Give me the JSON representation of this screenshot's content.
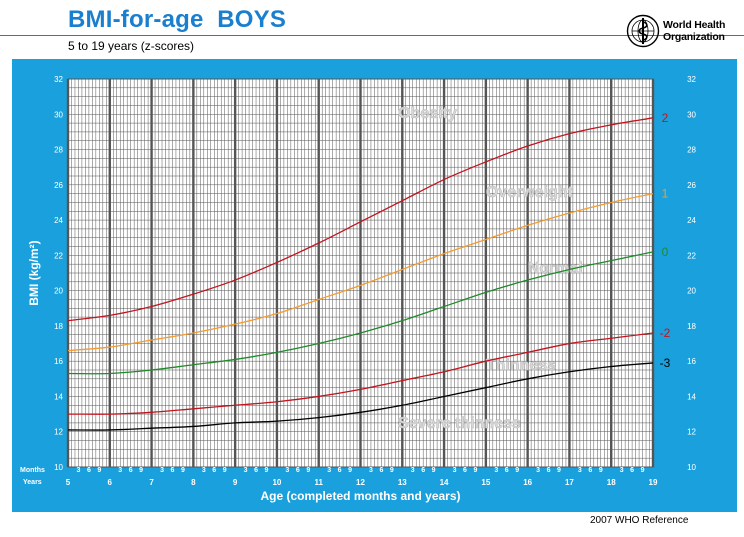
{
  "header": {
    "title": "BMI-for-age  BOYS",
    "subtitle": "5 to 19 years (z-scores)",
    "org_line1": "World Health",
    "org_line2": "Organization",
    "org_emblem": "who-emblem-icon"
  },
  "footer": {
    "reference": "2007  WHO Reference"
  },
  "colors": {
    "title": "#1a7fcf",
    "panel": "#1aa1dd",
    "grid": "#555555",
    "z2": "#c0151f",
    "z1": "#f39b30",
    "z0": "#1f8a2a",
    "zm2": "#c0151f",
    "zm3": "#000000",
    "zone_text": "#d8d8d8"
  },
  "chart_data": {
    "type": "line",
    "xlabel": "Age (completed months and years)",
    "ylabel": "BMI (kg/m²)",
    "xlim": [
      5,
      19
    ],
    "ylim": [
      10,
      32
    ],
    "x_ticks": [
      5,
      6,
      7,
      8,
      9,
      10,
      11,
      12,
      13,
      14,
      15,
      16,
      17,
      18,
      19
    ],
    "y_ticks": [
      10,
      12,
      14,
      16,
      18,
      20,
      22,
      24,
      26,
      28,
      30,
      32
    ],
    "months_label": "Months",
    "years_label": "Years",
    "month_ticks": [
      "3",
      "6",
      "9"
    ],
    "grid": true,
    "x": [
      5,
      6,
      7,
      8,
      9,
      10,
      11,
      12,
      13,
      14,
      15,
      16,
      17,
      18,
      19
    ],
    "series": [
      {
        "name": "2",
        "values": [
          18.3,
          18.6,
          19.1,
          19.8,
          20.6,
          21.6,
          22.7,
          23.9,
          25.1,
          26.3,
          27.3,
          28.2,
          28.9,
          29.4,
          29.8
        ]
      },
      {
        "name": "1",
        "values": [
          16.6,
          16.8,
          17.2,
          17.6,
          18.1,
          18.7,
          19.5,
          20.3,
          21.2,
          22.1,
          22.9,
          23.7,
          24.4,
          25.0,
          25.5
        ]
      },
      {
        "name": "0",
        "values": [
          15.3,
          15.3,
          15.5,
          15.8,
          16.1,
          16.5,
          17.0,
          17.6,
          18.3,
          19.1,
          19.9,
          20.6,
          21.2,
          21.7,
          22.2
        ]
      },
      {
        "name": "-2",
        "values": [
          13.0,
          13.0,
          13.1,
          13.3,
          13.5,
          13.7,
          14.0,
          14.4,
          14.9,
          15.4,
          16.0,
          16.5,
          17.0,
          17.3,
          17.6
        ]
      },
      {
        "name": "-3",
        "values": [
          12.1,
          12.1,
          12.2,
          12.3,
          12.5,
          12.6,
          12.8,
          13.1,
          13.5,
          14.0,
          14.5,
          15.0,
          15.4,
          15.7,
          15.9
        ]
      }
    ],
    "zones": [
      {
        "label": "Obesity",
        "x": 12.9,
        "y": 29.8
      },
      {
        "label": "Overweight",
        "x": 15.0,
        "y": 25.3
      },
      {
        "label": "Normal",
        "x": 16.0,
        "y": 21.0
      },
      {
        "label": "Thinness",
        "x": 15.0,
        "y": 15.5
      },
      {
        "label": "Severe thinness",
        "x": 12.9,
        "y": 12.2
      }
    ]
  }
}
